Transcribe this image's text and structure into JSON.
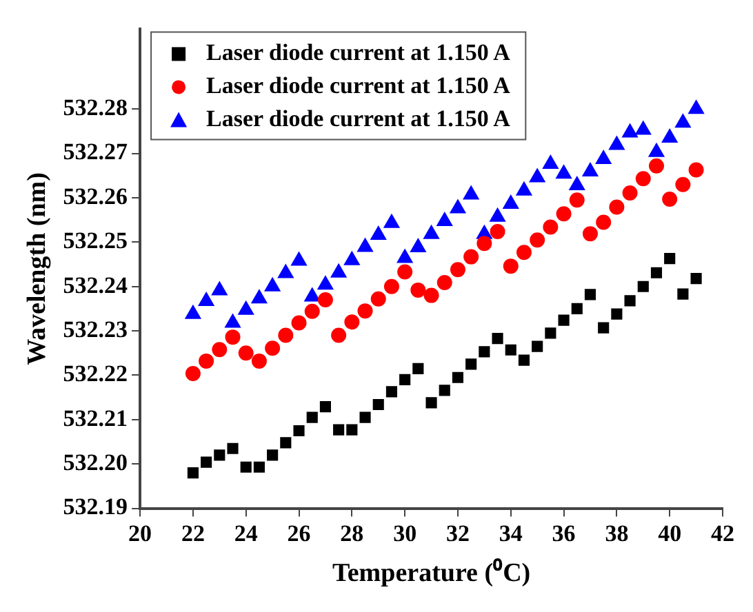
{
  "chart_data": {
    "type": "scatter",
    "xlabel": "Temperature (⁰C)",
    "ylabel": "Wavelength (nm)",
    "x": [
      22,
      22.5,
      23,
      23.5,
      24,
      24.5,
      25,
      25.5,
      26,
      26.5,
      27,
      27.5,
      28,
      28.5,
      29,
      29.5,
      30,
      30.5,
      31,
      31.5,
      32,
      32.5,
      33,
      33.5,
      34,
      34.5,
      35,
      35.5,
      36,
      36.5,
      37,
      37.5,
      38,
      38.5,
      39,
      39.5,
      40,
      40.5,
      41
    ],
    "series": [
      {
        "name": "Laser diode current at 1.150 A",
        "color": "#000000",
        "marker": "square",
        "values": [
          532.198,
          532.2004,
          532.202,
          532.2035,
          532.1993,
          532.1993,
          532.202,
          532.2048,
          532.2075,
          532.2105,
          532.2129,
          532.2077,
          532.2077,
          532.2105,
          532.2134,
          532.2163,
          532.219,
          532.2215,
          532.2138,
          532.2166,
          532.2195,
          532.2225,
          532.2253,
          532.2283,
          532.2257,
          532.2234,
          532.2265,
          532.2295,
          532.2324,
          532.235,
          532.2382,
          532.2307,
          532.2338,
          532.2368,
          532.24,
          532.2431,
          532.2463,
          532.2383,
          532.2418
        ]
      },
      {
        "name": "Laser diode current at 1.150 A",
        "color": "#ff0000",
        "marker": "circle",
        "values": [
          532.2204,
          532.2232,
          532.2258,
          532.2286,
          532.225,
          532.2232,
          532.2261,
          532.229,
          532.2318,
          532.2344,
          532.237,
          532.229,
          532.232,
          532.2345,
          532.2372,
          532.24,
          532.2433,
          532.2392,
          532.238,
          532.2409,
          532.2438,
          532.2467,
          532.2497,
          532.2524,
          532.2446,
          532.2477,
          532.2505,
          532.2534,
          532.2564,
          532.2595,
          532.2519,
          532.2545,
          532.2579,
          532.2611,
          532.2643,
          532.2672,
          532.2597,
          532.263,
          532.2663
        ]
      },
      {
        "name": "Laser diode current at 1.150 A",
        "color": "#0000ff",
        "marker": "triangle",
        "values": [
          532.2338,
          532.2367,
          532.2391,
          532.2318,
          532.2347,
          532.2373,
          532.24,
          532.243,
          532.2458,
          532.2377,
          532.2404,
          532.2431,
          532.2459,
          532.2489,
          532.2516,
          532.2543,
          532.2464,
          532.2488,
          532.2518,
          532.2547,
          532.2576,
          532.2607,
          532.2518,
          532.2557,
          532.2586,
          532.2616,
          532.2646,
          532.2676,
          532.2654,
          532.2628,
          532.2659,
          532.2687,
          532.2719,
          532.2747,
          532.2753,
          532.2703,
          532.2735,
          532.2769,
          532.28
        ]
      }
    ],
    "xlim": [
      20,
      42
    ],
    "xticks": [
      20,
      22,
      24,
      26,
      28,
      30,
      32,
      34,
      36,
      38,
      40,
      42
    ],
    "ylim": [
      532.19,
      532.298
    ],
    "yticks": [
      532.19,
      {
        "value": 532.2,
        "label": "532.20"
      },
      532.21,
      532.22,
      532.23,
      532.24,
      532.25,
      532.26,
      532.27,
      532.28
    ],
    "grid": false,
    "legend": "top left"
  }
}
